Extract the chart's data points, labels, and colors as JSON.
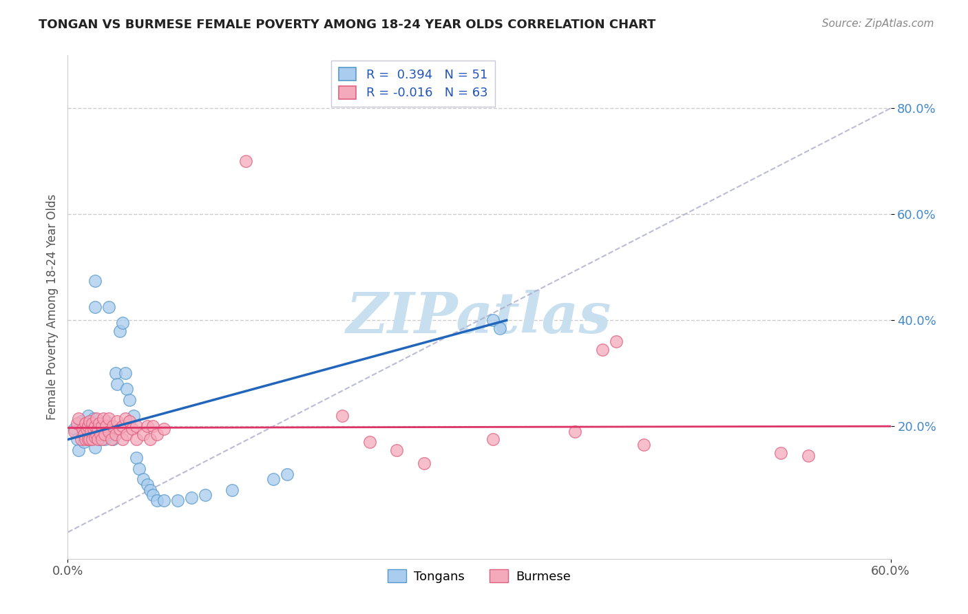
{
  "title": "TONGAN VS BURMESE FEMALE POVERTY AMONG 18-24 YEAR OLDS CORRELATION CHART",
  "source": "Source: ZipAtlas.com",
  "ylabel": "Female Poverty Among 18-24 Year Olds",
  "xlim": [
    0.0,
    0.6
  ],
  "ylim": [
    -0.05,
    0.9
  ],
  "yticks": [
    0.2,
    0.4,
    0.6,
    0.8
  ],
  "yticklabels": [
    "20.0%",
    "40.0%",
    "60.0%",
    "80.0%"
  ],
  "R_tongan": 0.394,
  "N_tongan": 51,
  "R_burmese": -0.016,
  "N_burmese": 63,
  "tongan_color": "#aaccee",
  "burmese_color": "#f5aabb",
  "tongan_edge_color": "#5599cc",
  "burmese_edge_color": "#e06080",
  "tongan_line_color": "#2266bb",
  "burmese_line_color": "#dd3366",
  "diag_color": "#aaaacc",
  "watermark": "ZIPatlas",
  "watermark_color": "#c8dff0",
  "tongan_scatter": [
    [
      0.005,
      0.195
    ],
    [
      0.007,
      0.175
    ],
    [
      0.008,
      0.155
    ],
    [
      0.01,
      0.21
    ],
    [
      0.011,
      0.185
    ],
    [
      0.012,
      0.17
    ],
    [
      0.013,
      0.2
    ],
    [
      0.015,
      0.22
    ],
    [
      0.015,
      0.18
    ],
    [
      0.017,
      0.175
    ],
    [
      0.018,
      0.195
    ],
    [
      0.019,
      0.215
    ],
    [
      0.02,
      0.16
    ],
    [
      0.02,
      0.18
    ],
    [
      0.02,
      0.475
    ],
    [
      0.02,
      0.425
    ],
    [
      0.021,
      0.2
    ],
    [
      0.022,
      0.185
    ],
    [
      0.023,
      0.175
    ],
    [
      0.025,
      0.19
    ],
    [
      0.025,
      0.205
    ],
    [
      0.027,
      0.175
    ],
    [
      0.028,
      0.21
    ],
    [
      0.03,
      0.425
    ],
    [
      0.03,
      0.185
    ],
    [
      0.031,
      0.2
    ],
    [
      0.033,
      0.175
    ],
    [
      0.035,
      0.3
    ],
    [
      0.036,
      0.28
    ],
    [
      0.038,
      0.38
    ],
    [
      0.04,
      0.395
    ],
    [
      0.042,
      0.3
    ],
    [
      0.043,
      0.27
    ],
    [
      0.045,
      0.25
    ],
    [
      0.048,
      0.22
    ],
    [
      0.05,
      0.14
    ],
    [
      0.052,
      0.12
    ],
    [
      0.055,
      0.1
    ],
    [
      0.058,
      0.09
    ],
    [
      0.06,
      0.08
    ],
    [
      0.062,
      0.07
    ],
    [
      0.065,
      0.06
    ],
    [
      0.07,
      0.06
    ],
    [
      0.08,
      0.06
    ],
    [
      0.09,
      0.065
    ],
    [
      0.1,
      0.07
    ],
    [
      0.12,
      0.08
    ],
    [
      0.15,
      0.1
    ],
    [
      0.16,
      0.11
    ],
    [
      0.31,
      0.4
    ],
    [
      0.315,
      0.385
    ]
  ],
  "burmese_scatter": [
    [
      0.005,
      0.19
    ],
    [
      0.007,
      0.205
    ],
    [
      0.008,
      0.215
    ],
    [
      0.01,
      0.175
    ],
    [
      0.011,
      0.195
    ],
    [
      0.012,
      0.185
    ],
    [
      0.013,
      0.205
    ],
    [
      0.013,
      0.175
    ],
    [
      0.014,
      0.195
    ],
    [
      0.015,
      0.175
    ],
    [
      0.015,
      0.2
    ],
    [
      0.016,
      0.21
    ],
    [
      0.016,
      0.175
    ],
    [
      0.017,
      0.19
    ],
    [
      0.018,
      0.205
    ],
    [
      0.018,
      0.175
    ],
    [
      0.019,
      0.195
    ],
    [
      0.02,
      0.18
    ],
    [
      0.02,
      0.2
    ],
    [
      0.021,
      0.185
    ],
    [
      0.021,
      0.215
    ],
    [
      0.022,
      0.195
    ],
    [
      0.022,
      0.175
    ],
    [
      0.023,
      0.205
    ],
    [
      0.024,
      0.185
    ],
    [
      0.025,
      0.2
    ],
    [
      0.025,
      0.175
    ],
    [
      0.026,
      0.215
    ],
    [
      0.027,
      0.185
    ],
    [
      0.028,
      0.2
    ],
    [
      0.03,
      0.19
    ],
    [
      0.03,
      0.215
    ],
    [
      0.032,
      0.175
    ],
    [
      0.033,
      0.2
    ],
    [
      0.035,
      0.185
    ],
    [
      0.036,
      0.21
    ],
    [
      0.038,
      0.195
    ],
    [
      0.04,
      0.175
    ],
    [
      0.04,
      0.2
    ],
    [
      0.042,
      0.215
    ],
    [
      0.043,
      0.185
    ],
    [
      0.045,
      0.21
    ],
    [
      0.047,
      0.195
    ],
    [
      0.05,
      0.2
    ],
    [
      0.05,
      0.175
    ],
    [
      0.055,
      0.185
    ],
    [
      0.058,
      0.2
    ],
    [
      0.06,
      0.175
    ],
    [
      0.062,
      0.2
    ],
    [
      0.065,
      0.185
    ],
    [
      0.07,
      0.195
    ],
    [
      0.13,
      0.7
    ],
    [
      0.2,
      0.22
    ],
    [
      0.22,
      0.17
    ],
    [
      0.24,
      0.155
    ],
    [
      0.26,
      0.13
    ],
    [
      0.31,
      0.175
    ],
    [
      0.37,
      0.19
    ],
    [
      0.39,
      0.345
    ],
    [
      0.4,
      0.36
    ],
    [
      0.42,
      0.165
    ],
    [
      0.52,
      0.15
    ],
    [
      0.54,
      0.145
    ]
  ]
}
